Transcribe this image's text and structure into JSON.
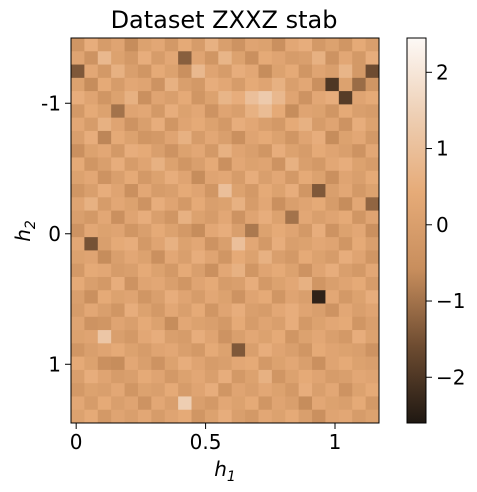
{
  "chart_data": {
    "type": "heatmap",
    "title": "Dataset ZXXZ stab",
    "xlabel": "h_1",
    "ylabel": "h_2",
    "x_range": [
      -0.02,
      1.17
    ],
    "y_range": [
      -1.5,
      1.45
    ],
    "y_inverted": true,
    "x_ticks": [
      {
        "value": 0,
        "label": "0"
      },
      {
        "value": 0.5,
        "label": "0.5"
      },
      {
        "value": 1,
        "label": "1"
      }
    ],
    "y_ticks": [
      {
        "value": -1,
        "label": "-1"
      },
      {
        "value": 0,
        "label": "0"
      },
      {
        "value": 1,
        "label": "1"
      }
    ],
    "grid": false,
    "n_cols": 23,
    "n_rows": 29,
    "value_range": [
      -2.6,
      2.45
    ],
    "colormap": "copper",
    "colormap_stops": [
      "#1f1812",
      "#6e4c31",
      "#c88e5d",
      "#e6ab78",
      "#eecfb4",
      "#fdf9f6"
    ],
    "colorbar": {
      "ticks": [
        {
          "value": 2,
          "label": "2"
        },
        {
          "value": 1,
          "label": "1"
        },
        {
          "value": 0,
          "label": "0"
        },
        {
          "value": -1,
          "label": "−1"
        },
        {
          "value": -2,
          "label": "−2"
        }
      ]
    },
    "values": [
      [
        -0.3,
        0.5,
        -0.1,
        0.2,
        -0.6,
        0.1,
        0.3,
        -0.2,
        0.4,
        -0.1,
        0.6,
        0.0,
        -0.4,
        0.2,
        0.1,
        -0.5,
        0.3,
        0.5,
        -0.2,
        0.1,
        -0.3,
        0.4,
        0.0
      ],
      [
        0.2,
        -0.4,
        0.8,
        0.1,
        -0.2,
        0.5,
        -0.1,
        0.3,
        -1.3,
        0.2,
        -0.3,
        0.7,
        0.1,
        -0.5,
        0.4,
        0.2,
        -0.1,
        0.0,
        0.6,
        -0.4,
        0.3,
        -0.2,
        0.5
      ],
      [
        -1.4,
        0.3,
        -0.2,
        0.6,
        0.0,
        -0.3,
        0.4,
        0.1,
        -0.5,
        0.8,
        0.2,
        -0.1,
        0.5,
        0.3,
        -0.6,
        0.1,
        0.4,
        -0.3,
        0.2,
        0.0,
        0.7,
        -0.2,
        -1.6
      ],
      [
        0.1,
        -0.6,
        0.4,
        -0.1,
        0.3,
        0.2,
        -0.4,
        0.6,
        0.0,
        -0.2,
        0.5,
        0.3,
        -0.1,
        0.4,
        0.2,
        0.6,
        0.0,
        0.3,
        -0.5,
        -2.0,
        0.1,
        -1.1,
        -0.3
      ],
      [
        0.5,
        0.2,
        -0.3,
        0.1,
        0.6,
        -0.5,
        0.2,
        0.0,
        0.4,
        -0.3,
        0.1,
        0.7,
        0.5,
        1.0,
        1.3,
        0.8,
        0.2,
        -0.4,
        0.3,
        0.5,
        -1.9,
        0.2,
        0.4
      ],
      [
        -0.2,
        0.4,
        0.1,
        -1.0,
        0.2,
        0.3,
        -0.2,
        0.5,
        0.1,
        0.3,
        -0.4,
        0.2,
        0.0,
        0.6,
        0.9,
        0.4,
        -0.6,
        0.2,
        0.1,
        -0.3,
        0.4,
        0.0,
        -0.1
      ],
      [
        0.3,
        -0.1,
        0.6,
        0.2,
        -0.4,
        0.0,
        0.5,
        -0.3,
        0.2,
        0.4,
        0.1,
        -0.2,
        0.5,
        0.3,
        0.0,
        -0.2,
        0.4,
        0.6,
        -0.1,
        0.2,
        -0.4,
        0.5,
        0.1
      ],
      [
        0.0,
        0.5,
        -0.7,
        0.4,
        0.1,
        -0.3,
        -0.2,
        0.2,
        0.6,
        -0.1,
        0.3,
        0.0,
        -0.5,
        0.2,
        0.4,
        0.1,
        -0.3,
        0.2,
        0.5,
        -0.6,
        0.1,
        0.3,
        -0.2
      ],
      [
        -0.5,
        0.1,
        0.3,
        -0.2,
        0.5,
        0.4,
        0.0,
        -0.4,
        0.1,
        0.3,
        -0.2,
        0.6,
        0.2,
        0.0,
        -0.3,
        0.5,
        0.1,
        -0.1,
        0.4,
        0.2,
        0.0,
        -0.4,
        0.3
      ],
      [
        0.4,
        -0.3,
        0.0,
        0.5,
        -0.1,
        0.2,
        0.6,
        0.1,
        -0.3,
        0.0,
        0.4,
        -0.5,
        0.3,
        0.1,
        0.2,
        -0.4,
        0.6,
        0.0,
        -0.2,
        0.3,
        0.5,
        0.1,
        -0.1
      ],
      [
        0.1,
        0.3,
        -0.4,
        0.0,
        0.4,
        -0.2,
        0.1,
        0.5,
        0.2,
        -0.6,
        0.2,
        0.3,
        -0.1,
        0.5,
        0.0,
        0.3,
        -0.2,
        0.4,
        0.1,
        -0.5,
        0.2,
        0.0,
        0.4
      ],
      [
        -0.3,
        0.0,
        0.5,
        0.2,
        -0.5,
        0.3,
        -0.1,
        0.0,
        0.4,
        0.2,
        -0.3,
        1.0,
        0.1,
        -0.2,
        0.4,
        0.1,
        0.5,
        -0.3,
        -1.4,
        0.0,
        0.3,
        -0.2,
        0.1
      ],
      [
        0.2,
        0.6,
        -0.1,
        0.3,
        0.1,
        -0.4,
        0.5,
        0.2,
        -0.2,
        0.4,
        0.0,
        0.1,
        0.6,
        -0.1,
        0.3,
        -0.5,
        0.0,
        0.2,
        0.4,
        -0.1,
        -0.6,
        0.3,
        -1.2
      ],
      [
        0.0,
        -0.2,
        0.3,
        -0.5,
        0.2,
        0.5,
        0.0,
        -0.3,
        0.6,
        0.1,
        -0.1,
        0.3,
        -0.4,
        0.2,
        0.5,
        0.1,
        -1.0,
        0.3,
        0.0,
        0.2,
        0.4,
        -0.3,
        0.2
      ],
      [
        -0.4,
        0.3,
        0.1,
        0.2,
        -0.3,
        0.0,
        0.4,
        0.1,
        -0.2,
        -0.6,
        0.3,
        0.5,
        0.0,
        -0.9,
        0.1,
        0.4,
        0.2,
        -0.2,
        0.5,
        -0.4,
        0.1,
        0.3,
        -0.5
      ],
      [
        0.3,
        -1.5,
        0.0,
        0.4,
        0.5,
        -0.2,
        0.2,
        0.6,
        0.1,
        0.3,
        -0.4,
        0.0,
        1.0,
        0.3,
        -0.2,
        0.5,
        0.0,
        0.1,
        0.3,
        0.2,
        -0.3,
        0.4,
        0.0
      ],
      [
        0.1,
        0.2,
        -0.6,
        0.0,
        0.3,
        0.1,
        -0.5,
        0.3,
        0.0,
        0.5,
        0.2,
        -0.3,
        0.4,
        0.1,
        0.6,
        0.0,
        -0.2,
        0.4,
        0.1,
        -0.1,
        0.5,
        0.2,
        -0.3
      ],
      [
        -0.2,
        0.4,
        0.3,
        -0.1,
        0.0,
        0.4,
        0.1,
        -0.2,
        0.4,
        0.0,
        -0.5,
        0.3,
        0.6,
        -0.3,
        0.2,
        0.4,
        0.1,
        -0.4,
        0.2,
        0.5,
        0.0,
        -0.2,
        0.3
      ],
      [
        0.4,
        0.0,
        -0.2,
        0.5,
        -0.4,
        0.2,
        0.3,
        0.0,
        -0.3,
        0.2,
        0.4,
        -0.1,
        0.0,
        0.5,
        -0.2,
        0.1,
        0.3,
        0.6,
        -0.3,
        0.0,
        0.2,
        0.4,
        -0.1
      ],
      [
        0.0,
        -0.5,
        0.4,
        0.1,
        0.2,
        -0.3,
        0.0,
        0.5,
        0.2,
        -0.1,
        0.3,
        0.1,
        -0.4,
        0.2,
        0.4,
        -0.3,
        0.2,
        0.0,
        -2.4,
        0.3,
        -0.2,
        0.1,
        0.5
      ],
      [
        -0.1,
        0.3,
        0.0,
        -0.3,
        0.5,
        0.1,
        -0.2,
        0.3,
        0.0,
        0.4,
        -0.3,
        0.2,
        0.5,
        0.0,
        -0.1,
        0.3,
        0.5,
        0.2,
        0.0,
        -0.4,
        0.3,
        0.0,
        0.2
      ],
      [
        0.2,
        -0.4,
        -0.3,
        0.2,
        0.0,
        0.4,
        0.1,
        -0.6,
        0.3,
        0.1,
        0.0,
        -0.2,
        0.4,
        -0.1,
        0.2,
        0.0,
        0.5,
        -0.2,
        0.1,
        0.3,
        0.4,
        -0.3,
        0.0
      ],
      [
        0.1,
        0.2,
        1.2,
        0.0,
        -0.2,
        0.3,
        0.5,
        0.0,
        -0.1,
        0.5,
        0.2,
        -0.4,
        0.0,
        0.3,
        0.1,
        0.4,
        -0.3,
        0.1,
        0.3,
        0.0,
        -0.2,
        0.5,
        0.1
      ],
      [
        -0.3,
        0.0,
        0.2,
        0.4,
        0.1,
        -0.1,
        0.2,
        0.3,
        0.0,
        -0.2,
        0.4,
        0.1,
        -1.4,
        0.0,
        0.5,
        0.2,
        0.0,
        -0.3,
        0.4,
        0.2,
        0.1,
        0.0,
        -0.4
      ],
      [
        0.4,
        0.1,
        -0.5,
        -0.6,
        0.3,
        0.0,
        -0.4,
        0.1,
        0.5,
        0.2,
        -0.1,
        0.0,
        0.3,
        0.4,
        -0.2,
        0.1,
        0.3,
        0.0,
        -0.5,
        0.2,
        0.4,
        0.1,
        0.0
      ],
      [
        0.0,
        0.5,
        0.2,
        -0.1,
        0.0,
        0.4,
        0.2,
        -0.2,
        0.1,
        0.3,
        0.0,
        0.5,
        -0.2,
        0.1,
        0.6,
        -0.3,
        0.1,
        0.4,
        0.2,
        -0.1,
        0.0,
        0.3,
        0.2
      ],
      [
        -0.2,
        0.1,
        0.0,
        0.3,
        -0.3,
        0.1,
        0.0,
        0.4,
        -0.1,
        0.2,
        0.5,
        -0.3,
        0.2,
        0.0,
        0.3,
        0.1,
        -0.2,
        0.5,
        0.0,
        0.3,
        -0.4,
        0.1,
        0.4
      ],
      [
        0.3,
        -0.1,
        0.4,
        0.0,
        0.2,
        -0.4,
        0.3,
        0.0,
        1.4,
        0.0,
        -0.2,
        0.3,
        0.1,
        0.4,
        -0.3,
        0.2,
        0.0,
        -0.6,
        0.3,
        0.1,
        0.0,
        0.4,
        -0.2
      ],
      [
        0.1,
        0.4,
        -0.2,
        0.2,
        0.0,
        0.3,
        -0.1,
        0.2,
        0.4,
        -0.3,
        0.1,
        0.5,
        0.0,
        -0.2,
        0.3,
        0.1,
        0.4,
        0.0,
        -0.5,
        0.2,
        0.3,
        -0.1,
        0.1
      ]
    ]
  }
}
